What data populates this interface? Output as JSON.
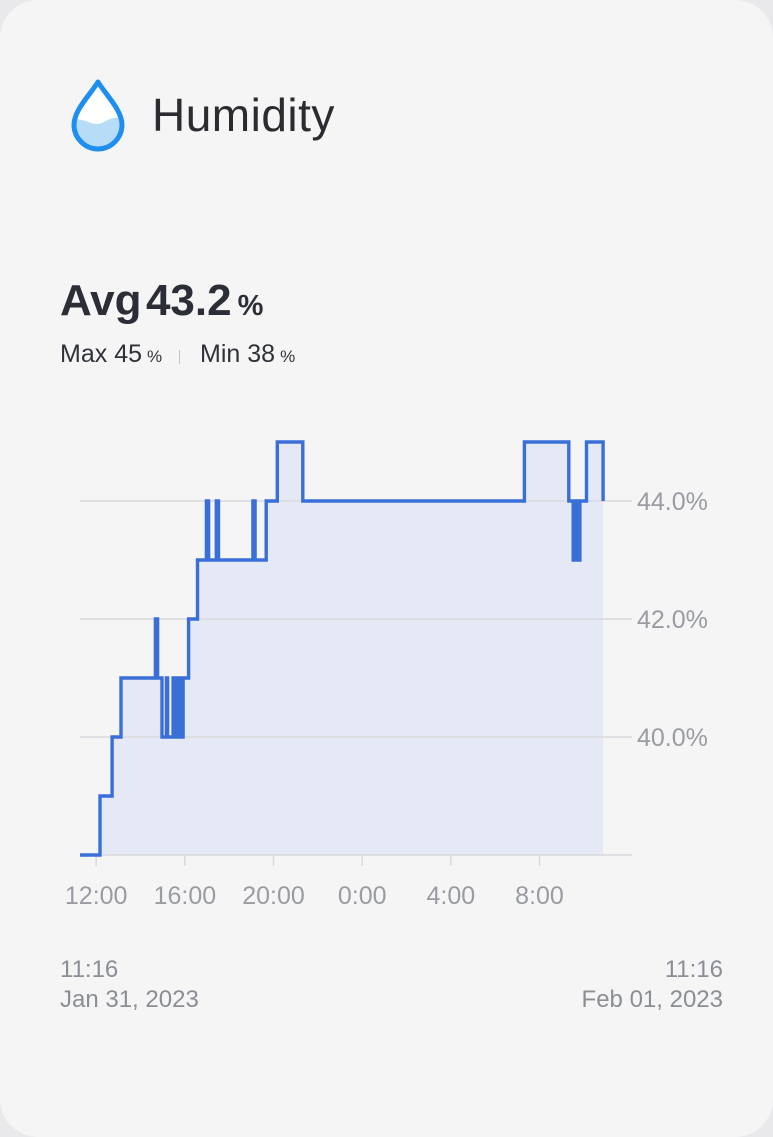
{
  "header": {
    "title": "Humidity",
    "icon": "water-drop-icon",
    "icon_color": "#1e8ff0"
  },
  "summary": {
    "avg_label": "Avg",
    "avg_value": "43.2",
    "unit": "%",
    "max_label": "Max",
    "max_value": "45",
    "min_label": "Min",
    "min_value": "38"
  },
  "time_range": {
    "start_time": "11:16",
    "start_date": "Jan 31, 2023",
    "end_time": "11:16",
    "end_date": "Feb 01, 2023"
  },
  "colors": {
    "line": "#3b6fd8",
    "fill": "#e4e9f5",
    "grid": "#d9dadd",
    "tick": "#9a9ca3"
  },
  "chart_data": {
    "type": "line",
    "step": true,
    "x_unit": "hours since 11:16 Jan 31, 2023",
    "xlim": [
      0,
      24
    ],
    "ylim": [
      38,
      45
    ],
    "y_ticks": [
      40,
      42,
      44
    ],
    "y_tick_labels": [
      "40.0%",
      "42.0%",
      "44.0%"
    ],
    "x_ticks": [
      0.73,
      4.73,
      8.73,
      12.73,
      16.73,
      20.73
    ],
    "x_tick_labels": [
      "12:00",
      "16:00",
      "20:00",
      "0:00",
      "4:00",
      "8:00"
    ],
    "grid": true,
    "fill": true,
    "series": [
      {
        "points": [
          [
            0.0,
            38
          ],
          [
            0.9,
            38
          ],
          [
            0.9,
            39
          ],
          [
            1.45,
            39
          ],
          [
            1.45,
            40
          ],
          [
            1.85,
            40
          ],
          [
            1.85,
            41
          ],
          [
            3.4,
            41
          ],
          [
            3.4,
            42
          ],
          [
            3.5,
            42
          ],
          [
            3.5,
            41
          ],
          [
            3.7,
            41
          ],
          [
            3.7,
            40
          ],
          [
            3.9,
            40
          ],
          [
            3.9,
            41
          ],
          [
            3.95,
            41
          ],
          [
            3.95,
            40
          ],
          [
            4.2,
            40
          ],
          [
            4.2,
            41
          ],
          [
            4.35,
            41
          ],
          [
            4.35,
            40
          ],
          [
            4.45,
            40
          ],
          [
            4.45,
            41
          ],
          [
            4.55,
            41
          ],
          [
            4.55,
            40
          ],
          [
            4.65,
            40
          ],
          [
            4.65,
            41
          ],
          [
            4.9,
            41
          ],
          [
            4.9,
            42
          ],
          [
            5.3,
            42
          ],
          [
            5.3,
            43
          ],
          [
            5.7,
            43
          ],
          [
            5.7,
            44
          ],
          [
            5.8,
            44
          ],
          [
            5.8,
            43
          ],
          [
            6.15,
            43
          ],
          [
            6.15,
            44
          ],
          [
            6.25,
            44
          ],
          [
            6.25,
            43
          ],
          [
            7.8,
            43
          ],
          [
            7.8,
            44
          ],
          [
            7.9,
            44
          ],
          [
            7.9,
            43
          ],
          [
            8.4,
            43
          ],
          [
            8.4,
            44
          ],
          [
            8.9,
            44
          ],
          [
            8.9,
            45
          ],
          [
            10.05,
            45
          ],
          [
            10.05,
            44
          ],
          [
            20.05,
            44
          ],
          [
            20.05,
            45
          ],
          [
            22.05,
            45
          ],
          [
            22.05,
            44
          ],
          [
            22.25,
            44
          ],
          [
            22.25,
            43
          ],
          [
            22.35,
            43
          ],
          [
            22.35,
            44
          ],
          [
            22.45,
            44
          ],
          [
            22.45,
            43
          ],
          [
            22.55,
            43
          ],
          [
            22.55,
            44
          ],
          [
            22.85,
            44
          ],
          [
            22.85,
            45
          ],
          [
            23.6,
            45
          ],
          [
            23.6,
            44
          ]
        ]
      }
    ]
  }
}
